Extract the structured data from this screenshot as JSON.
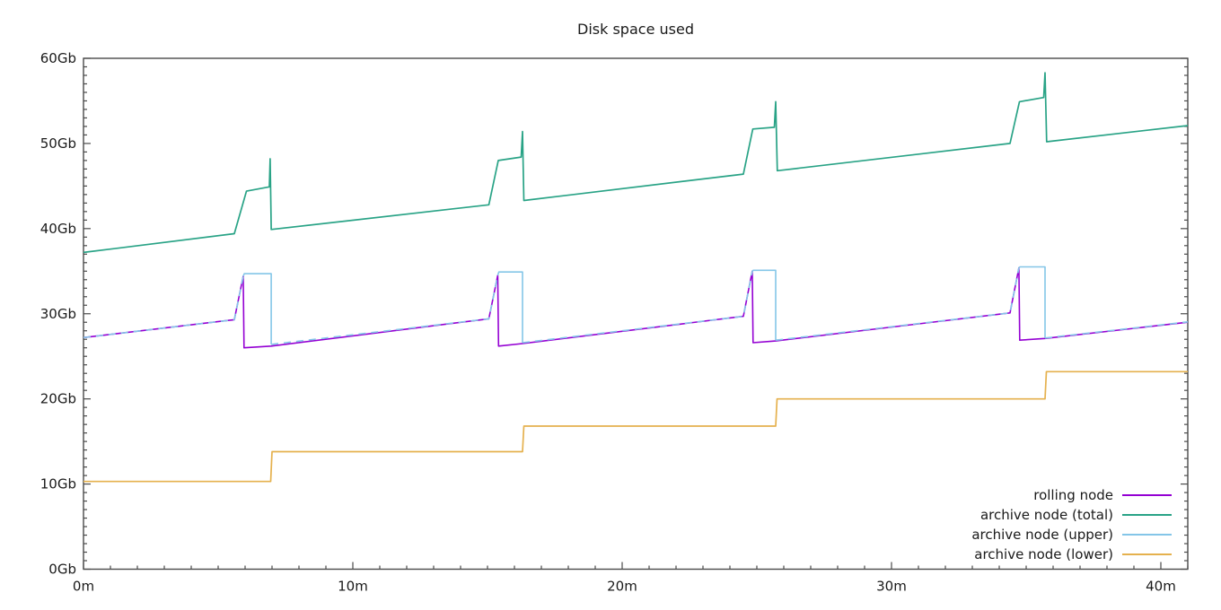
{
  "chart_data": {
    "type": "line",
    "title": "Disk space used",
    "xlabel": "",
    "ylabel": "",
    "x_unit": "minutes",
    "y_unit": "Gb",
    "xlim": [
      0,
      41
    ],
    "ylim": [
      0,
      60
    ],
    "grid": false,
    "legend_position": "bottom-right",
    "x_major_ticks": [
      {
        "value": 0,
        "label": "0m"
      },
      {
        "value": 10,
        "label": "10m"
      },
      {
        "value": 20,
        "label": "20m"
      },
      {
        "value": 30,
        "label": "30m"
      },
      {
        "value": 40,
        "label": "40m"
      }
    ],
    "x_minor_step": 1,
    "y_major_ticks": [
      {
        "value": 0,
        "label": "0Gb"
      },
      {
        "value": 10,
        "label": "10Gb"
      },
      {
        "value": 20,
        "label": "20Gb"
      },
      {
        "value": 30,
        "label": "30Gb"
      },
      {
        "value": 40,
        "label": "40Gb"
      },
      {
        "value": 50,
        "label": "50Gb"
      },
      {
        "value": 60,
        "label": "60Gb"
      }
    ],
    "y_minor_step": 1,
    "axis_color": "#4a4a4a",
    "series": [
      {
        "name": "rolling node",
        "color": "#9400d3",
        "width": 1.6,
        "segments": [
          {
            "style": "solid",
            "points": [
              [
                0,
                27.2
              ],
              [
                5.6,
                29.3
              ],
              [
                5.93,
                34.4
              ],
              [
                5.96,
                26.0
              ],
              [
                6.97,
                26.2
              ],
              [
                15.05,
                29.4
              ],
              [
                15.38,
                34.5
              ],
              [
                15.41,
                26.2
              ],
              [
                16.3,
                26.5
              ],
              [
                24.5,
                29.7
              ],
              [
                24.83,
                35.0
              ],
              [
                24.86,
                26.6
              ],
              [
                25.7,
                26.8
              ],
              [
                34.4,
                30.1
              ],
              [
                34.73,
                35.4
              ],
              [
                34.76,
                26.9
              ],
              [
                35.7,
                27.1
              ],
              [
                41,
                29.0
              ]
            ]
          }
        ]
      },
      {
        "name": "archive node (total)",
        "color": "#29a386",
        "width": 1.7,
        "segments": [
          {
            "style": "solid",
            "points": [
              [
                0,
                37.2
              ],
              [
                5.6,
                39.4
              ],
              [
                6.05,
                44.4
              ],
              [
                6.9,
                44.9
              ],
              [
                6.93,
                48.2
              ],
              [
                6.97,
                39.9
              ],
              [
                15.05,
                42.8
              ],
              [
                15.4,
                48.0
              ],
              [
                16.25,
                48.4
              ],
              [
                16.3,
                51.4
              ],
              [
                16.35,
                43.3
              ],
              [
                24.5,
                46.4
              ],
              [
                24.85,
                51.7
              ],
              [
                25.65,
                51.9
              ],
              [
                25.7,
                54.9
              ],
              [
                25.76,
                46.8
              ],
              [
                34.4,
                50.0
              ],
              [
                34.75,
                54.9
              ],
              [
                35.65,
                55.4
              ],
              [
                35.7,
                58.3
              ],
              [
                35.76,
                50.2
              ],
              [
                41,
                52.1
              ]
            ]
          }
        ]
      },
      {
        "name": "archive node (upper)",
        "color": "#84c6e8",
        "width": 1.6,
        "segments": [
          {
            "style": "dashed",
            "points": [
              [
                0,
                27.2
              ],
              [
                5.6,
                29.3
              ],
              [
                5.93,
                34.4
              ]
            ]
          },
          {
            "style": "solid",
            "points": [
              [
                5.93,
                34.4
              ],
              [
                5.97,
                34.7
              ],
              [
                6.97,
                34.7
              ],
              [
                6.97,
                26.4
              ]
            ]
          },
          {
            "style": "dashed",
            "points": [
              [
                6.97,
                26.4
              ],
              [
                15.05,
                29.4
              ],
              [
                15.38,
                34.5
              ]
            ]
          },
          {
            "style": "solid",
            "points": [
              [
                15.38,
                34.5
              ],
              [
                15.42,
                34.9
              ],
              [
                16.3,
                34.9
              ],
              [
                16.3,
                26.6
              ]
            ]
          },
          {
            "style": "dashed",
            "points": [
              [
                16.3,
                26.6
              ],
              [
                24.5,
                29.7
              ],
              [
                24.83,
                35.0
              ]
            ]
          },
          {
            "style": "solid",
            "points": [
              [
                24.83,
                35.0
              ],
              [
                24.87,
                35.1
              ],
              [
                25.7,
                35.1
              ],
              [
                25.7,
                26.9
              ]
            ]
          },
          {
            "style": "dashed",
            "points": [
              [
                25.7,
                26.9
              ],
              [
                34.4,
                30.1
              ],
              [
                34.73,
                35.4
              ]
            ]
          },
          {
            "style": "solid",
            "points": [
              [
                34.73,
                35.4
              ],
              [
                34.77,
                35.5
              ],
              [
                35.7,
                35.5
              ],
              [
                35.7,
                27.15
              ]
            ]
          },
          {
            "style": "dashed",
            "points": [
              [
                35.7,
                27.15
              ],
              [
                41,
                29.05
              ]
            ]
          }
        ]
      },
      {
        "name": "archive node (lower)",
        "color": "#e5b14e",
        "width": 1.7,
        "segments": [
          {
            "style": "solid",
            "points": [
              [
                0,
                10.3
              ],
              [
                6.95,
                10.3
              ],
              [
                7.0,
                13.8
              ],
              [
                16.3,
                13.8
              ],
              [
                16.35,
                16.8
              ],
              [
                25.7,
                16.8
              ],
              [
                25.75,
                20.0
              ],
              [
                35.7,
                20.0
              ],
              [
                35.75,
                23.2
              ],
              [
                41,
                23.2
              ]
            ]
          }
        ]
      }
    ]
  }
}
